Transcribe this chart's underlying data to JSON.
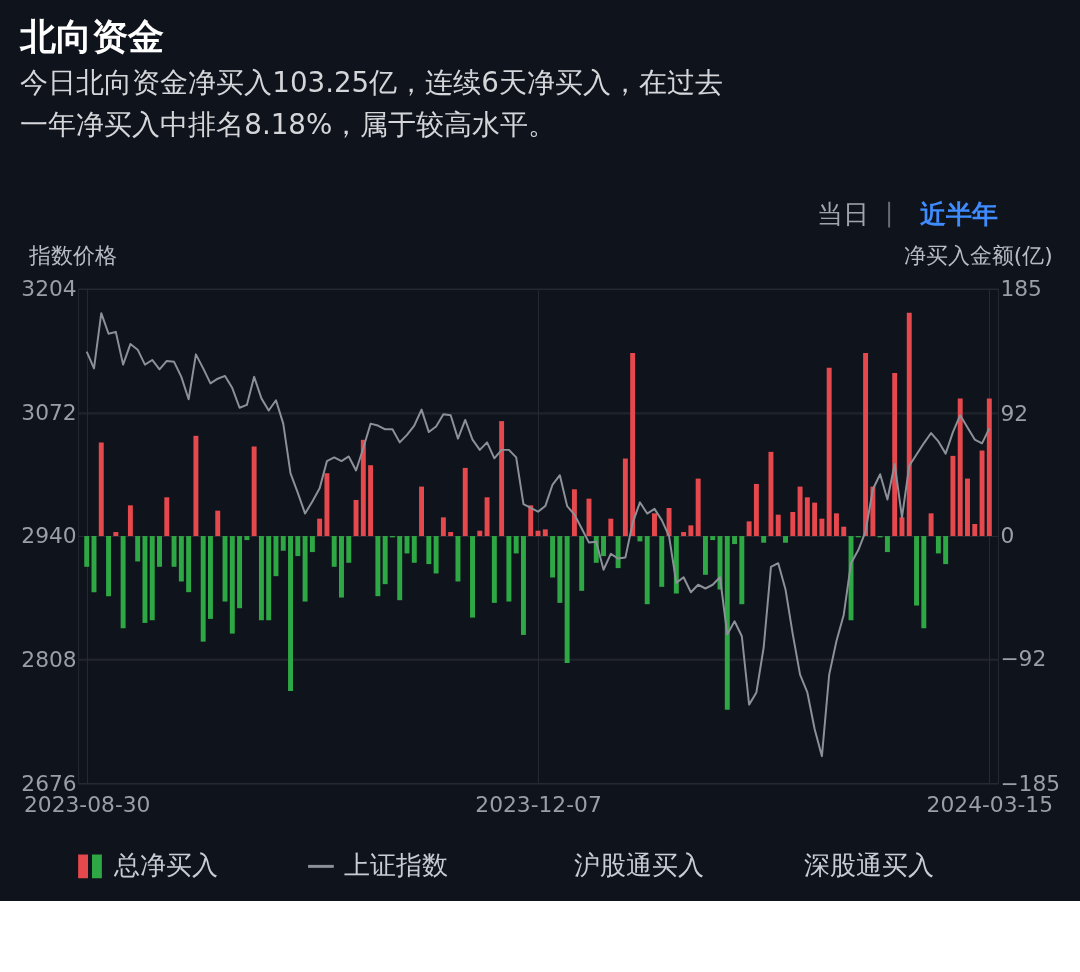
{
  "chart_data": {
    "type": "bar",
    "title": "北向资金",
    "subtitle": "今日北向资金净买入103.25亿，连续6天净买入，在过去一年净买入中排名8.18%，属于较高水平。",
    "ylabel": "指数价格",
    "y2label": "净买入金额(亿)",
    "categories": [
      "2023-08-30",
      null,
      null,
      null,
      null,
      null,
      null,
      null,
      null,
      null,
      null,
      null,
      null,
      null,
      null,
      null,
      null,
      null,
      null,
      null,
      null,
      null,
      null,
      null,
      null,
      null,
      null,
      null,
      null,
      null,
      null,
      null,
      null,
      null,
      null,
      null,
      null,
      null,
      null,
      null,
      null,
      null,
      null,
      null,
      null,
      null,
      null,
      null,
      null,
      null,
      null,
      null,
      null,
      null,
      null,
      null,
      null,
      null,
      null,
      null,
      null,
      null,
      "2023-12-07",
      null,
      null,
      null,
      null,
      null,
      null,
      null,
      null,
      null,
      null,
      null,
      null,
      null,
      null,
      null,
      null,
      null,
      null,
      null,
      null,
      null,
      null,
      null,
      null,
      null,
      null,
      null,
      null,
      null,
      null,
      null,
      null,
      null,
      null,
      null,
      null,
      null,
      null,
      null,
      null,
      null,
      null,
      null,
      null,
      null,
      null,
      null,
      null,
      null,
      null,
      null,
      null,
      null,
      null,
      null,
      null,
      null,
      null,
      null,
      null,
      null,
      "2024-03-15"
    ],
    "series": [
      {
        "name": "总净买入",
        "axis": "y2",
        "values": [
          -23,
          -42,
          70,
          -45,
          3,
          -69,
          23,
          -19,
          -65,
          -63,
          -23,
          29,
          -23,
          -34,
          -42,
          75,
          -79,
          -62,
          19,
          -49,
          -73,
          -54,
          -3,
          67,
          -63,
          -63,
          -30,
          -11,
          -116,
          -15,
          -49,
          -12,
          13,
          47,
          -23,
          -46,
          -20,
          27,
          72,
          53,
          -45,
          -36,
          -1,
          -48,
          -13,
          -20,
          37,
          -21,
          -28,
          14,
          3,
          -34,
          51,
          -61,
          4,
          29,
          -50,
          86,
          -49,
          -13,
          -74,
          23,
          4,
          5,
          -31,
          -50,
          -95,
          35,
          -41,
          28,
          -20,
          -15,
          13,
          -24,
          58,
          137,
          -4,
          -51,
          17,
          -38,
          21,
          -43,
          3,
          8,
          43,
          -29,
          -3,
          -40,
          -130,
          -6,
          -51,
          11,
          39,
          -5,
          63,
          16,
          -5,
          18,
          37,
          29,
          25,
          13,
          126,
          17,
          7,
          -63,
          -1,
          137,
          37,
          -1,
          -12,
          122,
          14,
          167,
          -52,
          -69,
          17,
          -13,
          -21,
          60,
          103,
          43,
          9,
          64,
          103
        ],
        "colors": [
          "#2ea844",
          "#2ea844",
          "#e5484d",
          "#2ea844",
          "#e5484d",
          "#2ea844",
          "#e5484d",
          "#2ea844",
          "#2ea844",
          "#2ea844",
          "#2ea844",
          "#e5484d",
          "#2ea844",
          "#2ea844",
          "#2ea844",
          "#e5484d",
          "#2ea844",
          "#2ea844",
          "#e5484d",
          "#2ea844",
          "#2ea844",
          "#2ea844",
          "#2ea844",
          "#e5484d",
          "#2ea844",
          "#2ea844",
          "#2ea844",
          "#2ea844",
          "#2ea844",
          "#2ea844",
          "#2ea844",
          "#2ea844",
          "#e5484d",
          "#e5484d",
          "#2ea844",
          "#2ea844",
          "#2ea844",
          "#e5484d",
          "#e5484d",
          "#e5484d",
          "#2ea844",
          "#2ea844",
          "#2ea844",
          "#2ea844",
          "#2ea844",
          "#2ea844",
          "#e5484d",
          "#2ea844",
          "#2ea844",
          "#e5484d",
          "#e5484d",
          "#2ea844",
          "#e5484d",
          "#2ea844",
          "#e5484d",
          "#e5484d",
          "#2ea844",
          "#e5484d",
          "#2ea844",
          "#2ea844",
          "#2ea844",
          "#e5484d",
          "#e5484d",
          "#e5484d",
          "#2ea844",
          "#2ea844",
          "#2ea844",
          "#e5484d",
          "#2ea844",
          "#e5484d",
          "#2ea844",
          "#2ea844",
          "#e5484d",
          "#2ea844",
          "#e5484d",
          "#e5484d",
          "#2ea844",
          "#2ea844",
          "#e5484d",
          "#2ea844",
          "#e5484d",
          "#2ea844",
          "#e5484d",
          "#e5484d",
          "#e5484d",
          "#2ea844",
          "#2ea844",
          "#2ea844",
          "#2ea844",
          "#2ea844",
          "#2ea844",
          "#e5484d",
          "#e5484d",
          "#2ea844",
          "#e5484d",
          "#e5484d",
          "#2ea844",
          "#e5484d",
          "#e5484d",
          "#e5484d",
          "#e5484d",
          "#e5484d",
          "#e5484d",
          "#e5484d",
          "#e5484d",
          "#2ea844",
          "#2ea844",
          "#e5484d",
          "#e5484d",
          "#2ea844",
          "#2ea844",
          "#e5484d",
          "#e5484d",
          "#e5484d",
          "#2ea844",
          "#2ea844",
          "#e5484d",
          "#2ea844",
          "#2ea844",
          "#e5484d",
          "#e5484d",
          "#e5484d",
          "#e5484d",
          "#e5484d",
          "#e5484d"
        ]
      },
      {
        "name": "上证指数",
        "type": "line",
        "color": "#8c9099",
        "values": [
          3137,
          3119,
          3178,
          3156,
          3158,
          3123,
          3145,
          3139,
          3123,
          3128,
          3118,
          3127,
          3126,
          3110,
          3086,
          3134,
          3119,
          3103,
          3108,
          3111,
          3098,
          3077,
          3080,
          3110,
          3087,
          3074,
          3085,
          3060,
          3007,
          2986,
          2964,
          2977,
          2991,
          3020,
          3024,
          3020,
          3025,
          3010,
          3034,
          3060,
          3058,
          3054,
          3054,
          3040,
          3048,
          3058,
          3075,
          3051,
          3057,
          3070,
          3069,
          3044,
          3064,
          3043,
          3032,
          3040,
          3023,
          3032,
          3032,
          3024,
          2974,
          2970,
          2966,
          2972,
          2995,
          3005,
          2972,
          2963,
          2948,
          2933,
          2934,
          2904,
          2921,
          2916,
          2917,
          2954,
          2976,
          2964,
          2969,
          2957,
          2940,
          2890,
          2896,
          2880,
          2888,
          2884,
          2888,
          2896,
          2835,
          2849,
          2833,
          2760,
          2773,
          2821,
          2907,
          2911,
          2883,
          2835,
          2792,
          2773,
          2734,
          2705,
          2792,
          2828,
          2856,
          2911,
          2925,
          2945,
          2990,
          3006,
          2979,
          3017,
          2960,
          3015,
          3027,
          3039,
          3050,
          3041,
          3028,
          3051,
          3069,
          3056,
          3043,
          3039,
          3055
        ]
      }
    ],
    "ylim": [
      2676,
      3204
    ],
    "yticks": [
      2676,
      2808,
      2940,
      3072,
      3204
    ],
    "y2lim": [
      -185,
      185
    ],
    "y2ticks": [
      -185,
      -92,
      0,
      92,
      185
    ],
    "grid": true,
    "legend": "bottom",
    "marker": "none",
    "line_style": "solid",
    "annotations": [
      "当日",
      "近半年",
      "沪股通买入",
      "深股通买入"
    ]
  }
}
